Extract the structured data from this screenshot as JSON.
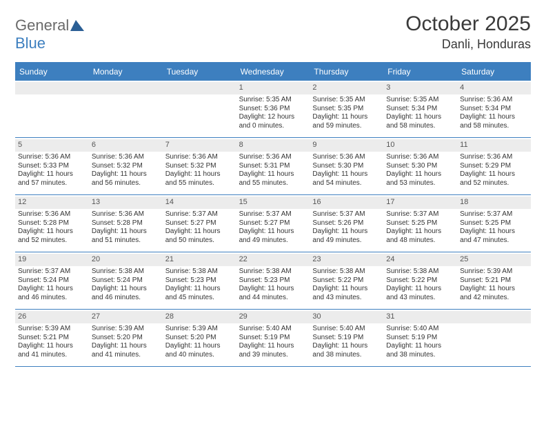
{
  "colors": {
    "accent": "#3d7fbf",
    "dayNumBg": "#ececec",
    "text": "#333333",
    "logoGray": "#6a6a6a",
    "background": "#ffffff"
  },
  "typography": {
    "titleFontSize": 30,
    "locationFontSize": 18,
    "dowFontSize": 12,
    "cellFontSize": 10
  },
  "calendar": {
    "type": "table",
    "columns": 7,
    "rows": 5
  },
  "logo": {
    "part1": "General",
    "part2": "Blue"
  },
  "header": {
    "monthTitle": "October 2025",
    "location": "Danli, Honduras"
  },
  "dow": [
    "Sunday",
    "Monday",
    "Tuesday",
    "Wednesday",
    "Thursday",
    "Friday",
    "Saturday"
  ],
  "weeks": [
    [
      {
        "num": "",
        "l1": "",
        "l2": "",
        "l3": "",
        "l4": ""
      },
      {
        "num": "",
        "l1": "",
        "l2": "",
        "l3": "",
        "l4": ""
      },
      {
        "num": "",
        "l1": "",
        "l2": "",
        "l3": "",
        "l4": ""
      },
      {
        "num": "1",
        "l1": "Sunrise: 5:35 AM",
        "l2": "Sunset: 5:36 PM",
        "l3": "Daylight: 12 hours",
        "l4": "and 0 minutes."
      },
      {
        "num": "2",
        "l1": "Sunrise: 5:35 AM",
        "l2": "Sunset: 5:35 PM",
        "l3": "Daylight: 11 hours",
        "l4": "and 59 minutes."
      },
      {
        "num": "3",
        "l1": "Sunrise: 5:35 AM",
        "l2": "Sunset: 5:34 PM",
        "l3": "Daylight: 11 hours",
        "l4": "and 58 minutes."
      },
      {
        "num": "4",
        "l1": "Sunrise: 5:36 AM",
        "l2": "Sunset: 5:34 PM",
        "l3": "Daylight: 11 hours",
        "l4": "and 58 minutes."
      }
    ],
    [
      {
        "num": "5",
        "l1": "Sunrise: 5:36 AM",
        "l2": "Sunset: 5:33 PM",
        "l3": "Daylight: 11 hours",
        "l4": "and 57 minutes."
      },
      {
        "num": "6",
        "l1": "Sunrise: 5:36 AM",
        "l2": "Sunset: 5:32 PM",
        "l3": "Daylight: 11 hours",
        "l4": "and 56 minutes."
      },
      {
        "num": "7",
        "l1": "Sunrise: 5:36 AM",
        "l2": "Sunset: 5:32 PM",
        "l3": "Daylight: 11 hours",
        "l4": "and 55 minutes."
      },
      {
        "num": "8",
        "l1": "Sunrise: 5:36 AM",
        "l2": "Sunset: 5:31 PM",
        "l3": "Daylight: 11 hours",
        "l4": "and 55 minutes."
      },
      {
        "num": "9",
        "l1": "Sunrise: 5:36 AM",
        "l2": "Sunset: 5:30 PM",
        "l3": "Daylight: 11 hours",
        "l4": "and 54 minutes."
      },
      {
        "num": "10",
        "l1": "Sunrise: 5:36 AM",
        "l2": "Sunset: 5:30 PM",
        "l3": "Daylight: 11 hours",
        "l4": "and 53 minutes."
      },
      {
        "num": "11",
        "l1": "Sunrise: 5:36 AM",
        "l2": "Sunset: 5:29 PM",
        "l3": "Daylight: 11 hours",
        "l4": "and 52 minutes."
      }
    ],
    [
      {
        "num": "12",
        "l1": "Sunrise: 5:36 AM",
        "l2": "Sunset: 5:28 PM",
        "l3": "Daylight: 11 hours",
        "l4": "and 52 minutes."
      },
      {
        "num": "13",
        "l1": "Sunrise: 5:36 AM",
        "l2": "Sunset: 5:28 PM",
        "l3": "Daylight: 11 hours",
        "l4": "and 51 minutes."
      },
      {
        "num": "14",
        "l1": "Sunrise: 5:37 AM",
        "l2": "Sunset: 5:27 PM",
        "l3": "Daylight: 11 hours",
        "l4": "and 50 minutes."
      },
      {
        "num": "15",
        "l1": "Sunrise: 5:37 AM",
        "l2": "Sunset: 5:27 PM",
        "l3": "Daylight: 11 hours",
        "l4": "and 49 minutes."
      },
      {
        "num": "16",
        "l1": "Sunrise: 5:37 AM",
        "l2": "Sunset: 5:26 PM",
        "l3": "Daylight: 11 hours",
        "l4": "and 49 minutes."
      },
      {
        "num": "17",
        "l1": "Sunrise: 5:37 AM",
        "l2": "Sunset: 5:25 PM",
        "l3": "Daylight: 11 hours",
        "l4": "and 48 minutes."
      },
      {
        "num": "18",
        "l1": "Sunrise: 5:37 AM",
        "l2": "Sunset: 5:25 PM",
        "l3": "Daylight: 11 hours",
        "l4": "and 47 minutes."
      }
    ],
    [
      {
        "num": "19",
        "l1": "Sunrise: 5:37 AM",
        "l2": "Sunset: 5:24 PM",
        "l3": "Daylight: 11 hours",
        "l4": "and 46 minutes."
      },
      {
        "num": "20",
        "l1": "Sunrise: 5:38 AM",
        "l2": "Sunset: 5:24 PM",
        "l3": "Daylight: 11 hours",
        "l4": "and 46 minutes."
      },
      {
        "num": "21",
        "l1": "Sunrise: 5:38 AM",
        "l2": "Sunset: 5:23 PM",
        "l3": "Daylight: 11 hours",
        "l4": "and 45 minutes."
      },
      {
        "num": "22",
        "l1": "Sunrise: 5:38 AM",
        "l2": "Sunset: 5:23 PM",
        "l3": "Daylight: 11 hours",
        "l4": "and 44 minutes."
      },
      {
        "num": "23",
        "l1": "Sunrise: 5:38 AM",
        "l2": "Sunset: 5:22 PM",
        "l3": "Daylight: 11 hours",
        "l4": "and 43 minutes."
      },
      {
        "num": "24",
        "l1": "Sunrise: 5:38 AM",
        "l2": "Sunset: 5:22 PM",
        "l3": "Daylight: 11 hours",
        "l4": "and 43 minutes."
      },
      {
        "num": "25",
        "l1": "Sunrise: 5:39 AM",
        "l2": "Sunset: 5:21 PM",
        "l3": "Daylight: 11 hours",
        "l4": "and 42 minutes."
      }
    ],
    [
      {
        "num": "26",
        "l1": "Sunrise: 5:39 AM",
        "l2": "Sunset: 5:21 PM",
        "l3": "Daylight: 11 hours",
        "l4": "and 41 minutes."
      },
      {
        "num": "27",
        "l1": "Sunrise: 5:39 AM",
        "l2": "Sunset: 5:20 PM",
        "l3": "Daylight: 11 hours",
        "l4": "and 41 minutes."
      },
      {
        "num": "28",
        "l1": "Sunrise: 5:39 AM",
        "l2": "Sunset: 5:20 PM",
        "l3": "Daylight: 11 hours",
        "l4": "and 40 minutes."
      },
      {
        "num": "29",
        "l1": "Sunrise: 5:40 AM",
        "l2": "Sunset: 5:19 PM",
        "l3": "Daylight: 11 hours",
        "l4": "and 39 minutes."
      },
      {
        "num": "30",
        "l1": "Sunrise: 5:40 AM",
        "l2": "Sunset: 5:19 PM",
        "l3": "Daylight: 11 hours",
        "l4": "and 38 minutes."
      },
      {
        "num": "31",
        "l1": "Sunrise: 5:40 AM",
        "l2": "Sunset: 5:19 PM",
        "l3": "Daylight: 11 hours",
        "l4": "and 38 minutes."
      },
      {
        "num": "",
        "l1": "",
        "l2": "",
        "l3": "",
        "l4": ""
      }
    ]
  ]
}
